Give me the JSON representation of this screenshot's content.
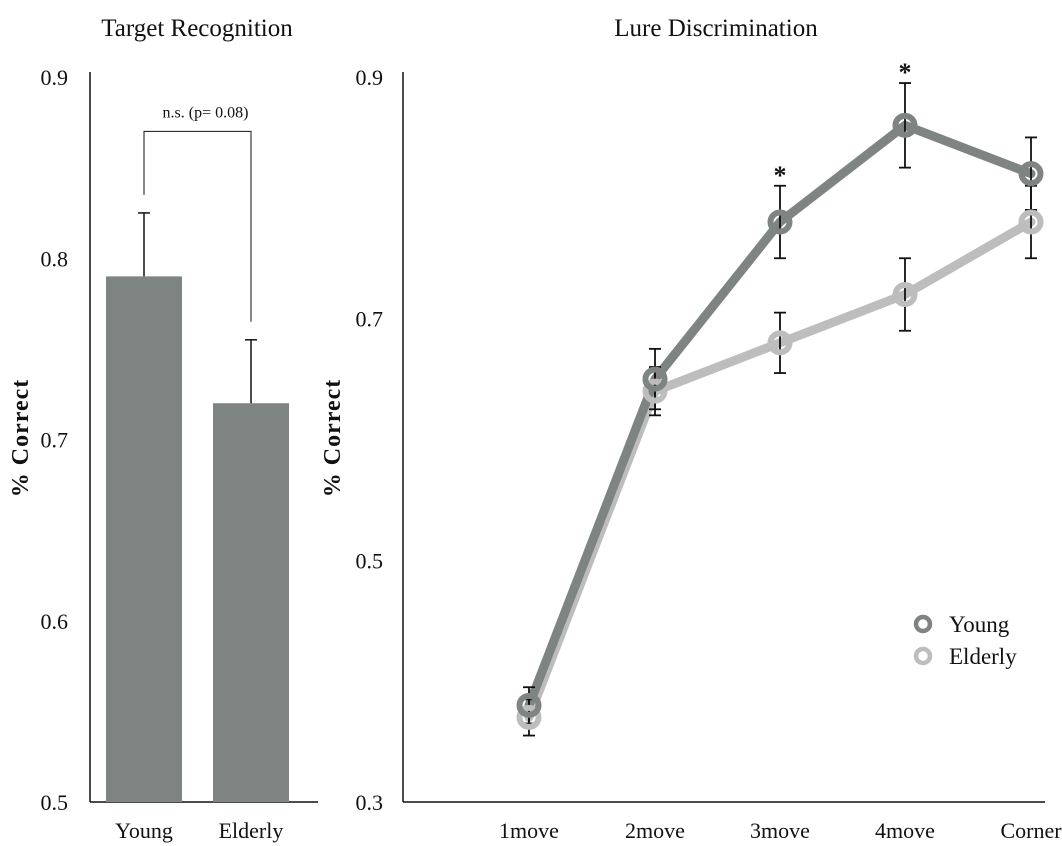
{
  "chart_data": [
    {
      "type": "bar",
      "title": "Target Recognition",
      "xlabel": "",
      "ylabel": "% Correct",
      "ylim": [
        0.5,
        0.9
      ],
      "yticks": [
        "0.5",
        "0.6",
        "0.7",
        "0.8",
        "0.9"
      ],
      "categories": [
        "Young",
        "Elderly"
      ],
      "values": [
        0.79,
        0.72
      ],
      "errors": [
        0.035,
        0.035
      ],
      "bar_color": "#7d8481",
      "annotation": "n.s. (p= 0.08)",
      "grid": false
    },
    {
      "type": "line",
      "title": "Lure Discrimination",
      "xlabel": "",
      "ylabel": "% Correct",
      "ylim": [
        0.3,
        0.9
      ],
      "yticks": [
        "0.3",
        "0.5",
        "0.7",
        "0.9"
      ],
      "categories": [
        "1move",
        "2move",
        "3move",
        "4move",
        "Corner"
      ],
      "series": [
        {
          "name": "Young",
          "color": "#7d8481",
          "values": [
            0.38,
            0.65,
            0.78,
            0.86,
            0.82
          ],
          "errors": [
            0.015,
            0.025,
            0.03,
            0.035,
            0.03
          ]
        },
        {
          "name": "Elderly",
          "color": "#bdbdbd",
          "values": [
            0.37,
            0.64,
            0.68,
            0.72,
            0.78
          ],
          "errors": [
            0.015,
            0.02,
            0.025,
            0.03,
            0.03
          ]
        }
      ],
      "significance": [
        {
          "category": "3move",
          "label": "*"
        },
        {
          "category": "4move",
          "label": "*"
        }
      ],
      "legend_position": "right",
      "grid": false
    }
  ]
}
